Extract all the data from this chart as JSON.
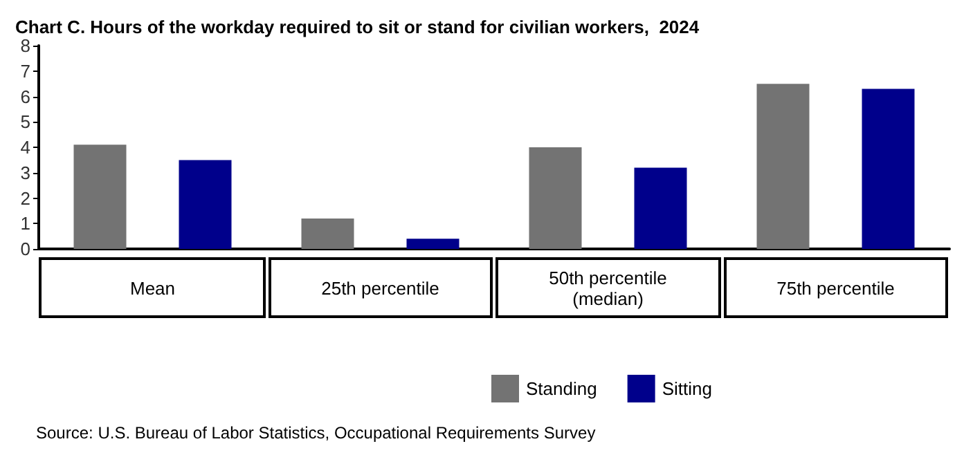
{
  "chart_data": {
    "type": "bar",
    "title": "Chart C. Hours of the workday required to sit or stand for civilian workers,  2024",
    "categories": [
      "Mean",
      "25th percentile",
      "50th percentile\n(median)",
      "75th percentile"
    ],
    "series": [
      {
        "name": "Standing",
        "color": "#737373",
        "values": [
          4.1,
          1.2,
          4.0,
          6.5
        ]
      },
      {
        "name": "Sitting",
        "color": "#00008b",
        "values": [
          3.5,
          0.4,
          3.2,
          6.3
        ]
      }
    ],
    "ylim": [
      0,
      8
    ],
    "yticks": [
      0,
      1,
      2,
      3,
      4,
      5,
      6,
      7,
      8
    ],
    "grid": false,
    "legend": "bottom",
    "annotations": [
      "Source: U.S. Bureau of Labor Statistics, Occupational Requirements Survey"
    ]
  }
}
